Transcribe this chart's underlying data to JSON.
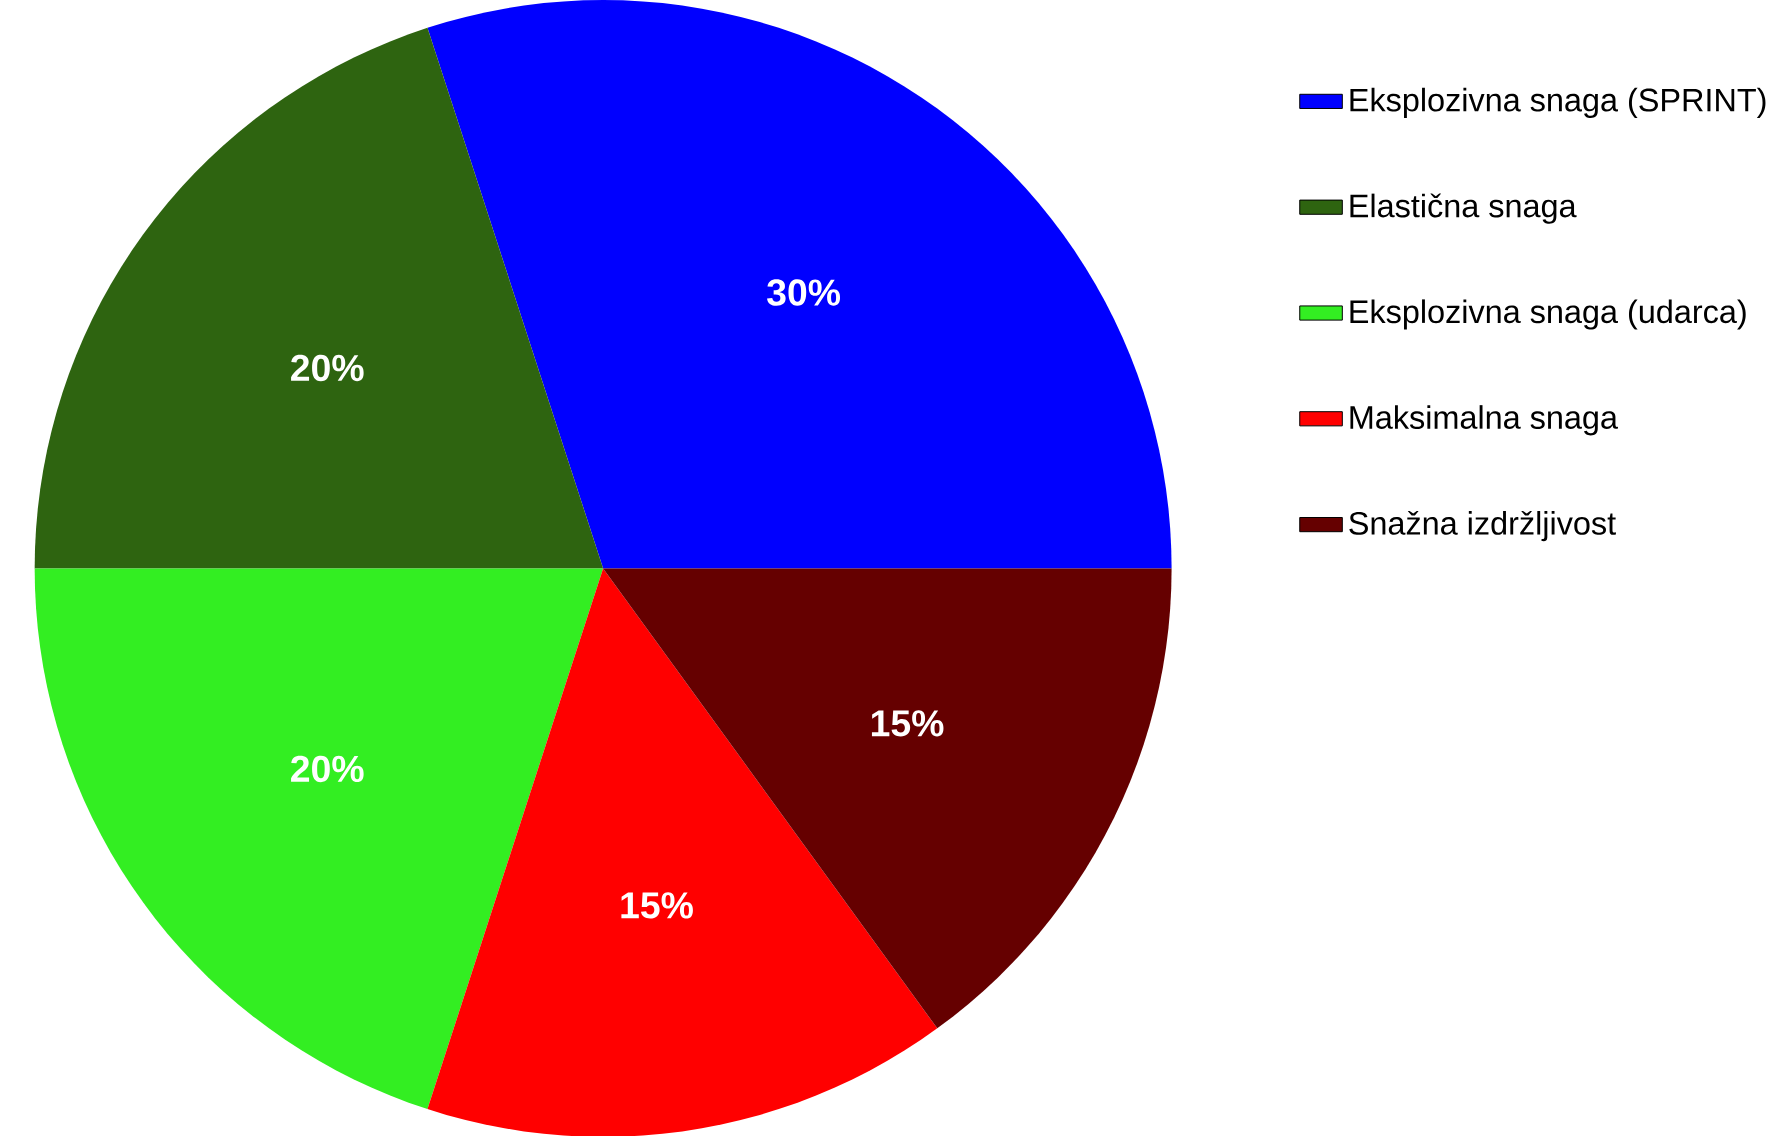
{
  "chart_data": {
    "type": "pie",
    "categories": [
      "Eksplozivna snaga (SPRINT)",
      "Elastična snaga",
      "Eksplozivna snaga (udarca)",
      "Maksimalna snaga",
      "Snažna izdržljivost"
    ],
    "values": [
      30,
      20,
      20,
      15,
      15
    ],
    "value_labels": [
      "30%",
      "20%",
      "20%",
      "15%",
      "15%"
    ],
    "colors": [
      "#0000ff",
      "#2e6410",
      "#33ee22",
      "#ff0000",
      "#650000"
    ],
    "legend": "right"
  }
}
